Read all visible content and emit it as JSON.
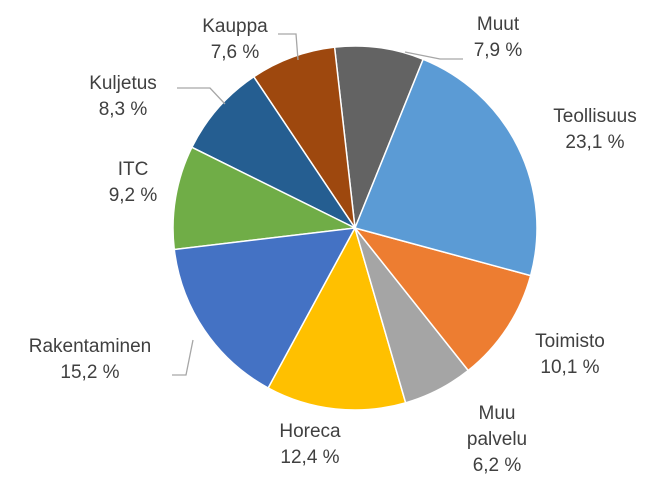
{
  "chart_data": {
    "type": "pie",
    "categories": [
      "Teollisuus",
      "Toimisto",
      "Muu palvelu",
      "Horeca",
      "Rakentaminen",
      "ITC",
      "Kuljetus",
      "Kauppa",
      "Muut"
    ],
    "values": [
      23.1,
      10.1,
      6.2,
      12.4,
      15.2,
      9.2,
      8.3,
      7.6,
      7.9
    ],
    "value_labels": [
      "23,1 %",
      "10,1 %",
      "6,2 %",
      "12,4 %",
      "15,2 %",
      "9,2 %",
      "8,3 %",
      "7,6 %",
      "7,9 %"
    ],
    "colors": [
      "#5b9bd5",
      "#ed7d31",
      "#a5a5a5",
      "#ffc000",
      "#4472c4",
      "#70ad47",
      "#255e91",
      "#9e480e",
      "#636363"
    ]
  }
}
